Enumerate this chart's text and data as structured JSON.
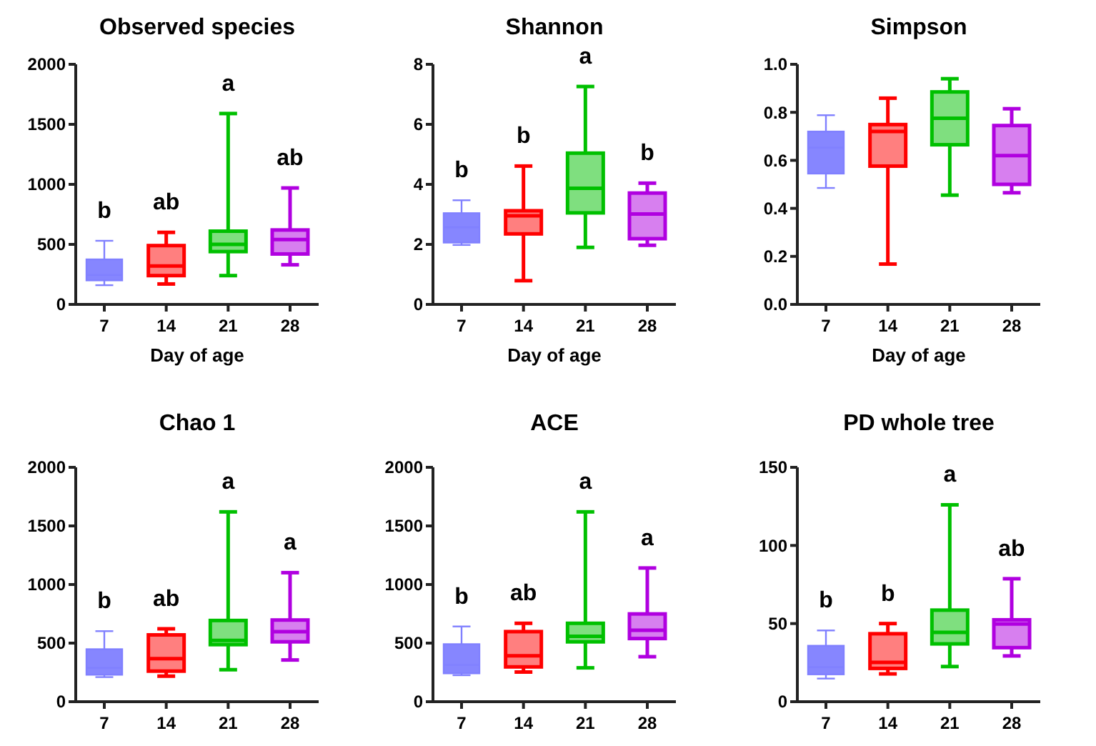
{
  "chart_data": [
    {
      "type": "box",
      "title": "Observed species",
      "xlabel": "Day of age",
      "categories": [
        "7",
        "14",
        "21",
        "28"
      ],
      "colors": [
        "#8080ff",
        "#ff0000",
        "#00c000",
        "#b000e0"
      ],
      "ylim": [
        0,
        2000
      ],
      "yticks": [
        0,
        500,
        1000,
        1500,
        2000
      ],
      "boxes": [
        {
          "low": 160,
          "q1": 200,
          "median": 245,
          "q3": 375,
          "high": 530
        },
        {
          "low": 170,
          "q1": 240,
          "median": 320,
          "q3": 490,
          "high": 600
        },
        {
          "low": 240,
          "q1": 440,
          "median": 500,
          "q3": 610,
          "high": 1590
        },
        {
          "low": 330,
          "q1": 420,
          "median": 540,
          "q3": 620,
          "high": 970
        }
      ],
      "annotations": [
        "b",
        "ab",
        "a",
        "ab"
      ]
    },
    {
      "type": "box",
      "title": "Shannon",
      "xlabel": "Day of age",
      "categories": [
        "7",
        "14",
        "21",
        "28"
      ],
      "colors": [
        "#8080ff",
        "#ff0000",
        "#00c000",
        "#b000e0"
      ],
      "ylim": [
        0,
        8
      ],
      "yticks": [
        0,
        2,
        4,
        6,
        8
      ],
      "boxes": [
        {
          "low": 1.98,
          "q1": 2.06,
          "median": 2.57,
          "q3": 3.04,
          "high": 3.47
        },
        {
          "low": 0.79,
          "q1": 2.35,
          "median": 2.95,
          "q3": 3.12,
          "high": 4.61
        },
        {
          "low": 1.9,
          "q1": 3.05,
          "median": 3.87,
          "q3": 5.04,
          "high": 7.26
        },
        {
          "low": 1.97,
          "q1": 2.19,
          "median": 3.01,
          "q3": 3.71,
          "high": 4.04
        }
      ],
      "annotations": [
        "b",
        "b",
        "a",
        "b"
      ]
    },
    {
      "type": "box",
      "title": "Simpson",
      "xlabel": "Day of age",
      "categories": [
        "7",
        "14",
        "21",
        "28"
      ],
      "colors": [
        "#8080ff",
        "#ff0000",
        "#00c000",
        "#b000e0"
      ],
      "ylim": [
        0,
        1
      ],
      "yticks": [
        {
          "value": 0,
          "label": "0.0"
        },
        0.2,
        0.4,
        0.6,
        0.8,
        {
          "value": 1,
          "label": "1.0"
        }
      ],
      "boxes": [
        {
          "low": 0.485,
          "q1": 0.545,
          "median": 0.653,
          "q3": 0.72,
          "high": 0.788
        },
        {
          "low": 0.168,
          "q1": 0.576,
          "median": 0.72,
          "q3": 0.749,
          "high": 0.859
        },
        {
          "low": 0.455,
          "q1": 0.665,
          "median": 0.775,
          "q3": 0.885,
          "high": 0.94
        },
        {
          "low": 0.465,
          "q1": 0.5,
          "median": 0.62,
          "q3": 0.745,
          "high": 0.815
        }
      ]
    },
    {
      "type": "box",
      "title": "Chao 1",
      "categories": [
        "7",
        "14",
        "21",
        "28"
      ],
      "colors": [
        "#8080ff",
        "#ff0000",
        "#00c000",
        "#b000e0"
      ],
      "ylim": [
        0,
        2000
      ],
      "yticks": [
        0,
        500,
        1000,
        1500,
        2000
      ],
      "boxes": [
        {
          "low": 210,
          "q1": 230,
          "median": 289,
          "q3": 448,
          "high": 602
        },
        {
          "low": 218,
          "q1": 261,
          "median": 368,
          "q3": 570,
          "high": 622
        },
        {
          "low": 273,
          "q1": 487,
          "median": 523,
          "q3": 693,
          "high": 1620
        },
        {
          "low": 356,
          "q1": 511,
          "median": 598,
          "q3": 697,
          "high": 1101
        }
      ],
      "annotations": [
        "b",
        "ab",
        "a",
        "a"
      ]
    },
    {
      "type": "box",
      "title": "ACE",
      "categories": [
        "7",
        "14",
        "21",
        "28"
      ],
      "colors": [
        "#8080ff",
        "#ff0000",
        "#00c000",
        "#b000e0"
      ],
      "ylim": [
        0,
        2000
      ],
      "yticks": [
        0,
        500,
        1000,
        1500,
        2000
      ],
      "boxes": [
        {
          "low": 226,
          "q1": 242,
          "median": 313,
          "q3": 491,
          "high": 642
        },
        {
          "low": 253,
          "q1": 297,
          "median": 392,
          "q3": 598,
          "high": 669
        },
        {
          "low": 289,
          "q1": 511,
          "median": 558,
          "q3": 669,
          "high": 1620
        },
        {
          "low": 384,
          "q1": 539,
          "median": 610,
          "q3": 749,
          "high": 1141
        }
      ],
      "annotations": [
        "b",
        "ab",
        "a",
        "a"
      ]
    },
    {
      "type": "box",
      "title": "PD whole tree",
      "categories": [
        "7",
        "14",
        "21",
        "28"
      ],
      "colors": [
        "#8080ff",
        "#ff0000",
        "#00c000",
        "#b000e0"
      ],
      "ylim": [
        0,
        150
      ],
      "yticks": [
        0,
        50,
        100,
        150
      ],
      "boxes": [
        {
          "low": 14.8,
          "q1": 17.5,
          "median": 22.2,
          "q3": 35.8,
          "high": 45.6
        },
        {
          "low": 17.8,
          "q1": 21.3,
          "median": 25.1,
          "q3": 43.5,
          "high": 50
        },
        {
          "low": 22.5,
          "q1": 37,
          "median": 44.4,
          "q3": 58.6,
          "high": 126
        },
        {
          "low": 29.3,
          "q1": 34.6,
          "median": 49.7,
          "q3": 52.4,
          "high": 78.7
        }
      ],
      "annotations": [
        "b",
        "b",
        "a",
        "ab"
      ]
    }
  ]
}
